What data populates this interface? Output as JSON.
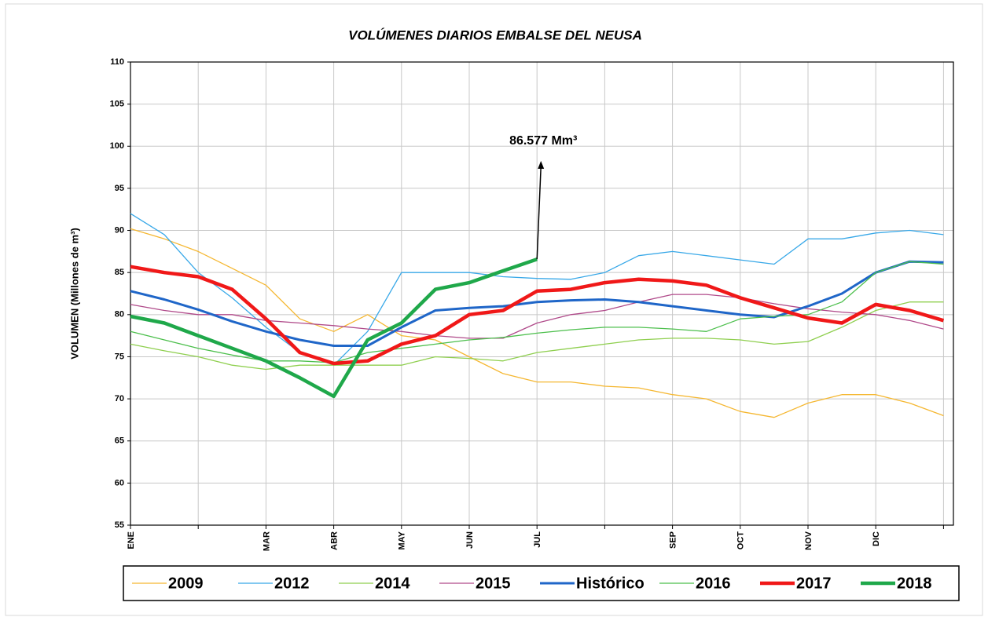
{
  "chart_data": {
    "type": "line",
    "title": "VOLÚMENES DIARIOS EMBALSE DEL NEUSA",
    "y_label": "VOLUMEN (Millones de m³)",
    "annotation": "86.577 Mm³",
    "categories": [
      "ENE",
      null,
      null,
      null,
      "MAR",
      null,
      "ABR",
      null,
      "MAY",
      null,
      "JUN",
      null,
      "JUL",
      null,
      null,
      null,
      "SEP",
      null,
      "OCT",
      null,
      "NOV",
      null,
      "DIC",
      null,
      null
    ],
    "ylim": [
      55,
      110
    ],
    "yticks": [
      55,
      60,
      65,
      70,
      75,
      80,
      85,
      90,
      95,
      100,
      105,
      110
    ],
    "grid": true,
    "series": [
      {
        "name": "2009",
        "color": "#f5b731",
        "width": 1.3,
        "values": [
          90.2,
          89,
          87.5,
          85.5,
          83.5,
          79.5,
          78,
          80,
          77.5,
          77,
          75,
          73,
          72,
          72,
          71.5,
          71.3,
          70.5,
          70,
          68.5,
          67.8,
          69.5,
          70.5,
          70.5,
          69.5,
          68
        ]
      },
      {
        "name": "2012",
        "color": "#38a8e8",
        "width": 1.3,
        "values": [
          92,
          89.5,
          85,
          82,
          78.5,
          75.5,
          74,
          78,
          85,
          85,
          85,
          84.5,
          84.3,
          84.2,
          85,
          87,
          87.5,
          87,
          86.5,
          86,
          89,
          89,
          89.7,
          90,
          89.5
        ]
      },
      {
        "name": "2014",
        "color": "#8fcf4f",
        "width": 1.3,
        "values": [
          76.5,
          75.7,
          75,
          74,
          73.5,
          74,
          74,
          74,
          74,
          75,
          74.8,
          74.5,
          75.5,
          76,
          76.5,
          77,
          77.2,
          77.2,
          77,
          76.5,
          76.8,
          78.5,
          80.5,
          81.5,
          81.5
        ]
      },
      {
        "name": "2015",
        "color": "#b04a8a",
        "width": 1.3,
        "values": [
          81.2,
          80.5,
          80,
          80,
          79.3,
          79,
          78.7,
          78.3,
          78,
          77.5,
          77.2,
          77.2,
          79,
          80,
          80.5,
          81.5,
          82.4,
          82.4,
          82,
          81.3,
          80.7,
          80.3,
          80,
          79.3,
          78.3
        ]
      },
      {
        "name": "Histórico",
        "color": "#1f66c8",
        "width": 3,
        "values": [
          82.8,
          81.8,
          80.6,
          79.2,
          78,
          77,
          76.3,
          76.3,
          78.5,
          80.5,
          80.8,
          81,
          81.5,
          81.7,
          81.8,
          81.5,
          81,
          80.5,
          80,
          79.7,
          81,
          82.5,
          85,
          86.3,
          86.2
        ]
      },
      {
        "name": "2016",
        "color": "#4cbf4c",
        "width": 1.3,
        "values": [
          78,
          77,
          76,
          75.2,
          74.5,
          74.5,
          74.3,
          75.5,
          76,
          76.5,
          77,
          77.3,
          77.8,
          78.2,
          78.5,
          78.5,
          78.3,
          78,
          79.5,
          79.8,
          80,
          81.5,
          85,
          86.3,
          86
        ]
      },
      {
        "name": "2017",
        "color": "#f01818",
        "width": 4.5,
        "values": [
          85.7,
          85,
          84.5,
          83,
          79.5,
          75.5,
          74.2,
          74.5,
          76.5,
          77.5,
          80,
          80.5,
          82.8,
          83,
          83.8,
          84.2,
          84,
          83.5,
          82,
          80.8,
          79.6,
          79,
          81.2,
          80.5,
          79.3
        ]
      },
      {
        "name": "2018",
        "color": "#1fa84a",
        "width": 4.5,
        "values": [
          79.8,
          79,
          77.5,
          76,
          74.5,
          72.5,
          70.3,
          77,
          79,
          83,
          83.8,
          85.2,
          86.577,
          null,
          null,
          null,
          null,
          null,
          null,
          null,
          null,
          null,
          null,
          null,
          null
        ]
      }
    ]
  }
}
